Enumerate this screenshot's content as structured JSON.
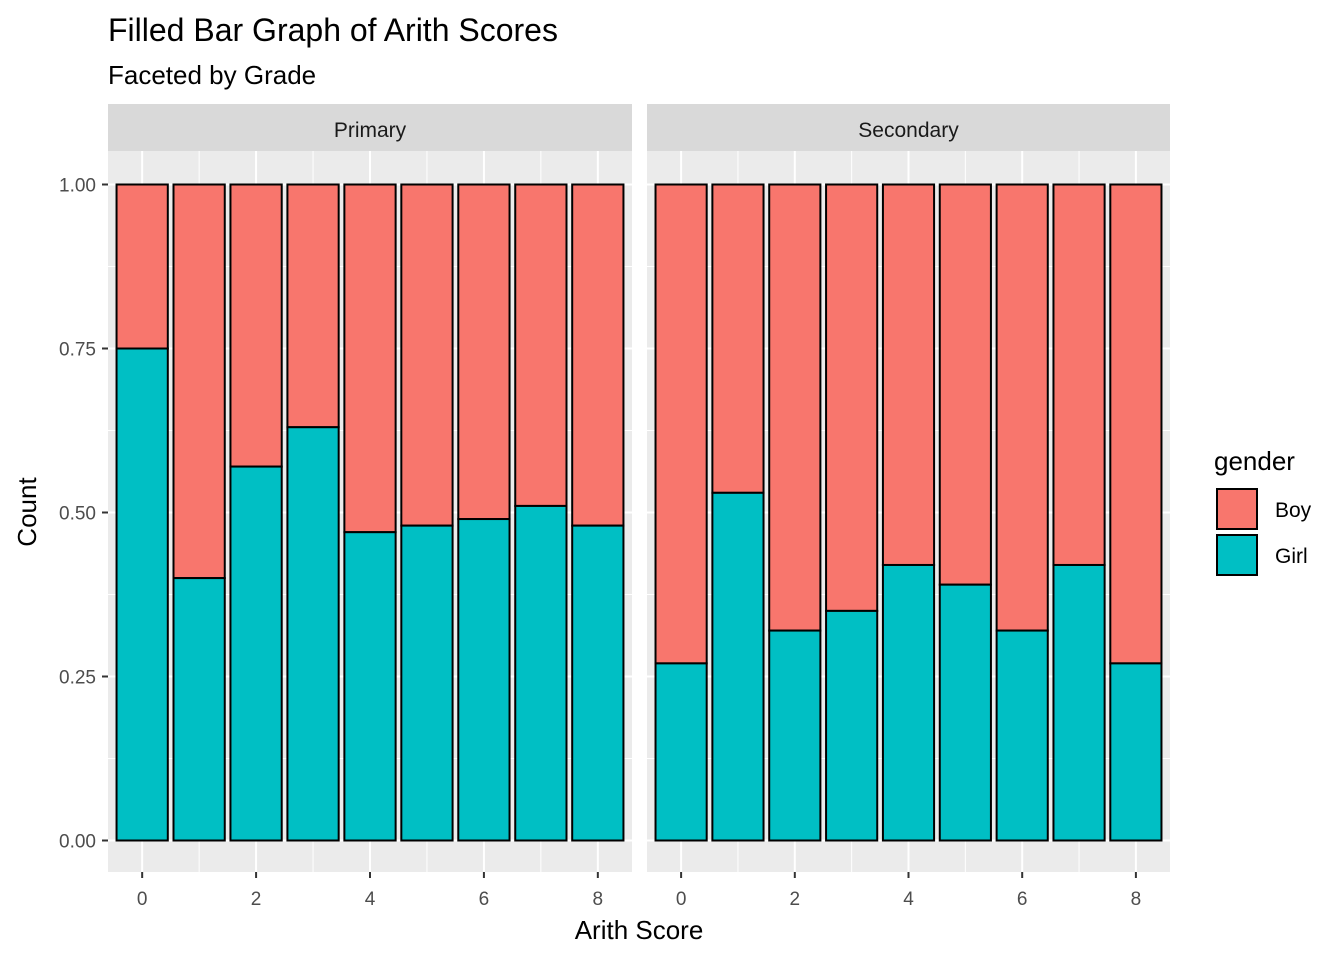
{
  "chart_data": {
    "type": "bar",
    "stacked": true,
    "position": "fill",
    "title": "Filled Bar Graph of Arith Scores",
    "subtitle": "Faceted by Grade",
    "xlabel": "Arith Score",
    "ylabel": "Count",
    "ylim": [
      0,
      1
    ],
    "yticks": [
      "0.00",
      "0.25",
      "0.50",
      "0.75",
      "1.00"
    ],
    "xticks": [
      "0",
      "2",
      "4",
      "6",
      "8"
    ],
    "x": [
      0,
      1,
      2,
      3,
      4,
      5,
      6,
      7,
      8
    ],
    "grid": true,
    "legend": {
      "title": "gender",
      "placement": "right",
      "entries": [
        {
          "name": "Boy",
          "color": "#F8766D"
        },
        {
          "name": "Girl",
          "color": "#00BFC4"
        }
      ]
    },
    "facets": [
      {
        "label": "Primary",
        "series": [
          {
            "name": "Girl",
            "color": "#00BFC4",
            "values": [
              0.75,
              0.4,
              0.57,
              0.63,
              0.47,
              0.48,
              0.49,
              0.51,
              0.48
            ]
          },
          {
            "name": "Boy",
            "color": "#F8766D",
            "values": [
              0.25,
              0.6,
              0.43,
              0.37,
              0.53,
              0.52,
              0.51,
              0.49,
              0.52
            ]
          }
        ]
      },
      {
        "label": "Secondary",
        "series": [
          {
            "name": "Girl",
            "color": "#00BFC4",
            "values": [
              0.27,
              0.53,
              0.32,
              0.35,
              0.42,
              0.39,
              0.32,
              0.42,
              0.27
            ]
          },
          {
            "name": "Boy",
            "color": "#F8766D",
            "values": [
              0.73,
              0.47,
              0.68,
              0.65,
              0.58,
              0.61,
              0.68,
              0.58,
              0.73
            ]
          }
        ]
      }
    ]
  }
}
